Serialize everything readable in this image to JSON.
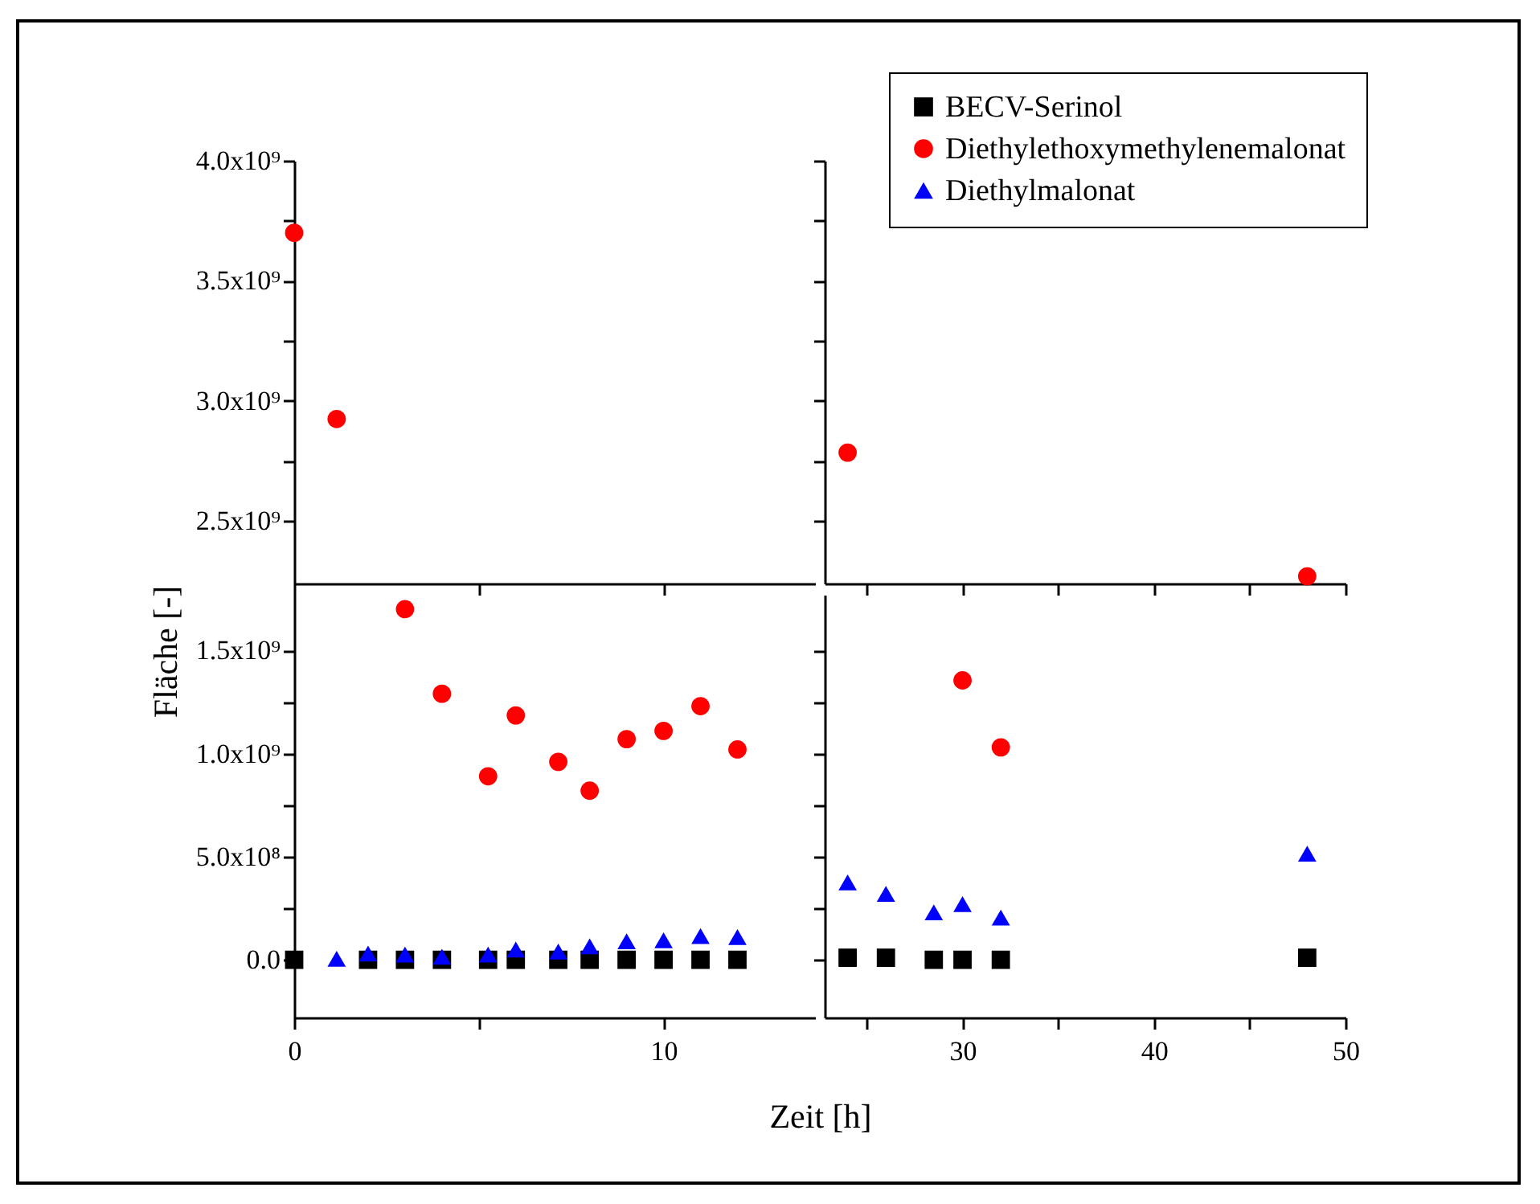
{
  "chart_data": [
    {
      "type": "scatter",
      "xlim": [
        0,
        14.1
      ],
      "ylim": [
        2240000000,
        4000000000
      ],
      "tick_labels": "y",
      "xticks": [
        {
          "value": 0,
          "label": null
        },
        {
          "value": 5,
          "label": null
        },
        {
          "value": 10,
          "label": null
        }
      ],
      "yticks": [
        {
          "value": 2500000000,
          "label": "2.5x10⁹"
        },
        {
          "value": 2750000000,
          "label": null
        },
        {
          "value": 3000000000,
          "label": "3.0x10⁹"
        },
        {
          "value": 3250000000,
          "label": null
        },
        {
          "value": 3500000000,
          "label": "3.5x10⁹"
        },
        {
          "value": 3750000000,
          "label": null
        },
        {
          "value": 4000000000,
          "label": "4.0x10⁹"
        }
      ],
      "series": [
        {
          "color": "#ff0000",
          "marker": "circle",
          "x": [
            0,
            1.15
          ],
          "values": [
            3700000000,
            2925000000
          ]
        }
      ]
    },
    {
      "type": "scatter",
      "xlim": [
        22.8,
        50
      ],
      "ylim": [
        2240000000,
        4000000000
      ],
      "tick_labels": false,
      "legend": "top right",
      "xticks": [
        {
          "value": 25,
          "label": null
        },
        {
          "value": 30,
          "label": null
        },
        {
          "value": 35,
          "label": null
        },
        {
          "value": 40,
          "label": null
        },
        {
          "value": 45,
          "label": null
        },
        {
          "value": 50,
          "label": null
        }
      ],
      "yticks": [
        {
          "value": 2500000000,
          "label": null
        },
        {
          "value": 2750000000,
          "label": null
        },
        {
          "value": 3000000000,
          "label": null
        },
        {
          "value": 3250000000,
          "label": null
        },
        {
          "value": 3500000000,
          "label": null
        },
        {
          "value": 3750000000,
          "label": null
        },
        {
          "value": 4000000000,
          "label": null
        }
      ],
      "series": [
        {
          "name": "BECV-Serinol",
          "color": "#000000",
          "marker": "square"
        },
        {
          "name": "Diethylethoxymethylenemalonat",
          "color": "#ff0000",
          "marker": "circle",
          "x": [
            24,
            48
          ],
          "values": [
            2785000000,
            2270000000
          ]
        },
        {
          "name": "Diethylmalonat",
          "color": "#0000ff",
          "marker": "triangle"
        }
      ]
    },
    {
      "type": "scatter",
      "xlim": [
        0,
        14.1
      ],
      "ylim": [
        -280000000,
        1770000000
      ],
      "xlabel": "Zeit [h]",
      "ylabel": "Fläche [-]",
      "xticks": [
        0,
        {
          "value": 5,
          "label": null
        },
        10
      ],
      "yticks": [
        {
          "value": 0,
          "label": "0.0"
        },
        {
          "value": 250000000,
          "label": null
        },
        {
          "value": 500000000,
          "label": "5.0x10⁸"
        },
        {
          "value": 750000000,
          "label": null
        },
        {
          "value": 1000000000,
          "label": "1.0x10⁹"
        },
        {
          "value": 1250000000,
          "label": null
        },
        {
          "value": 1500000000,
          "label": "1.5x10⁹"
        }
      ],
      "series": [
        {
          "color": "#000000",
          "marker": "square",
          "x": [
            0,
            2,
            3,
            4,
            5.25,
            6,
            7.15,
            8,
            9,
            10,
            11,
            12
          ],
          "values": [
            0,
            0,
            0,
            0,
            0,
            0,
            0,
            0,
            0,
            0,
            0,
            0
          ]
        },
        {
          "color": "#ff0000",
          "marker": "circle",
          "x": [
            3,
            4,
            5.25,
            6,
            7.15,
            8,
            9,
            10,
            11,
            12
          ],
          "values": [
            1700000000,
            1290000000,
            890000000,
            1185000000,
            960000000,
            820000000,
            1070000000,
            1110000000,
            1230000000,
            1020000000
          ]
        },
        {
          "color": "#0000ff",
          "marker": "triangle",
          "x": [
            1.15,
            2,
            3,
            4,
            5.25,
            6,
            7.15,
            8,
            9,
            10,
            11,
            12
          ],
          "values": [
            5000000,
            30000000,
            25000000,
            15000000,
            25000000,
            50000000,
            40000000,
            65000000,
            90000000,
            95000000,
            115000000,
            110000000
          ]
        }
      ]
    },
    {
      "type": "scatter",
      "xlim": [
        22.8,
        50
      ],
      "ylim": [
        -280000000,
        1770000000
      ],
      "tick_labels": "x",
      "xticks": [
        {
          "value": 25,
          "label": null
        },
        30,
        {
          "value": 35,
          "label": null
        },
        40,
        {
          "value": 45,
          "label": null
        },
        50
      ],
      "yticks": [
        {
          "value": 0,
          "label": null
        },
        {
          "value": 250000000,
          "label": null
        },
        {
          "value": 500000000,
          "label": null
        },
        {
          "value": 750000000,
          "label": null
        },
        {
          "value": 1000000000,
          "label": null
        },
        {
          "value": 1250000000,
          "label": null
        },
        {
          "value": 1500000000,
          "label": null
        }
      ],
      "series": [
        {
          "color": "#000000",
          "marker": "square",
          "x": [
            24,
            26,
            28.5,
            30,
            32,
            48
          ],
          "values": [
            10000000,
            10000000,
            0,
            0,
            0,
            10000000
          ]
        },
        {
          "color": "#ff0000",
          "marker": "circle",
          "x": [
            30,
            32
          ],
          "values": [
            1355000000,
            1030000000
          ]
        },
        {
          "color": "#0000ff",
          "marker": "triangle",
          "x": [
            24,
            26,
            28.5,
            30,
            32,
            48
          ],
          "values": [
            375000000,
            320000000,
            230000000,
            270000000,
            205000000,
            515000000
          ]
        }
      ]
    }
  ]
}
